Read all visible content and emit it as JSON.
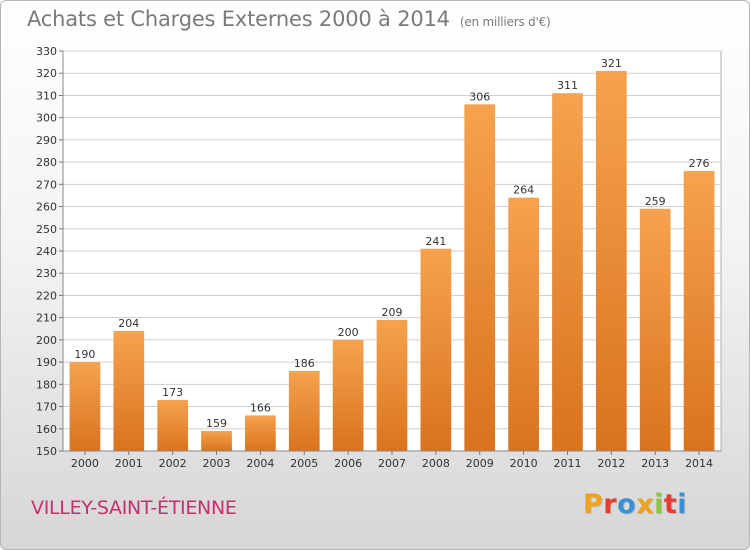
{
  "header": {
    "title": "Achats et Charges Externes 2000 à 2014",
    "subtitle": "(en milliers d'€)"
  },
  "footer": {
    "commune": "VILLEY-SAINT-ÉTIENNE",
    "logo": "Proxiti"
  },
  "colors": {
    "bar_light": "#f6a24e",
    "bar_dark": "#d9731e",
    "grid": "#cfcfcf",
    "title": "#7a7a7a",
    "commune": "#c5306e"
  },
  "chart_data": {
    "type": "bar",
    "title": "Achats et Charges Externes 2000 à 2014",
    "subtitle": "(en milliers d'€)",
    "categories": [
      "2000",
      "2001",
      "2002",
      "2003",
      "2004",
      "2005",
      "2006",
      "2007",
      "2008",
      "2009",
      "2010",
      "2011",
      "2012",
      "2013",
      "2014"
    ],
    "values": [
      190,
      204,
      173,
      159,
      166,
      186,
      200,
      209,
      241,
      306,
      264,
      311,
      321,
      259,
      276
    ],
    "ylim": [
      150,
      330
    ],
    "yticks": [
      150,
      160,
      170,
      180,
      190,
      200,
      210,
      220,
      230,
      240,
      250,
      260,
      270,
      280,
      290,
      300,
      310,
      320,
      330
    ],
    "grid": true,
    "data_labels": true
  }
}
